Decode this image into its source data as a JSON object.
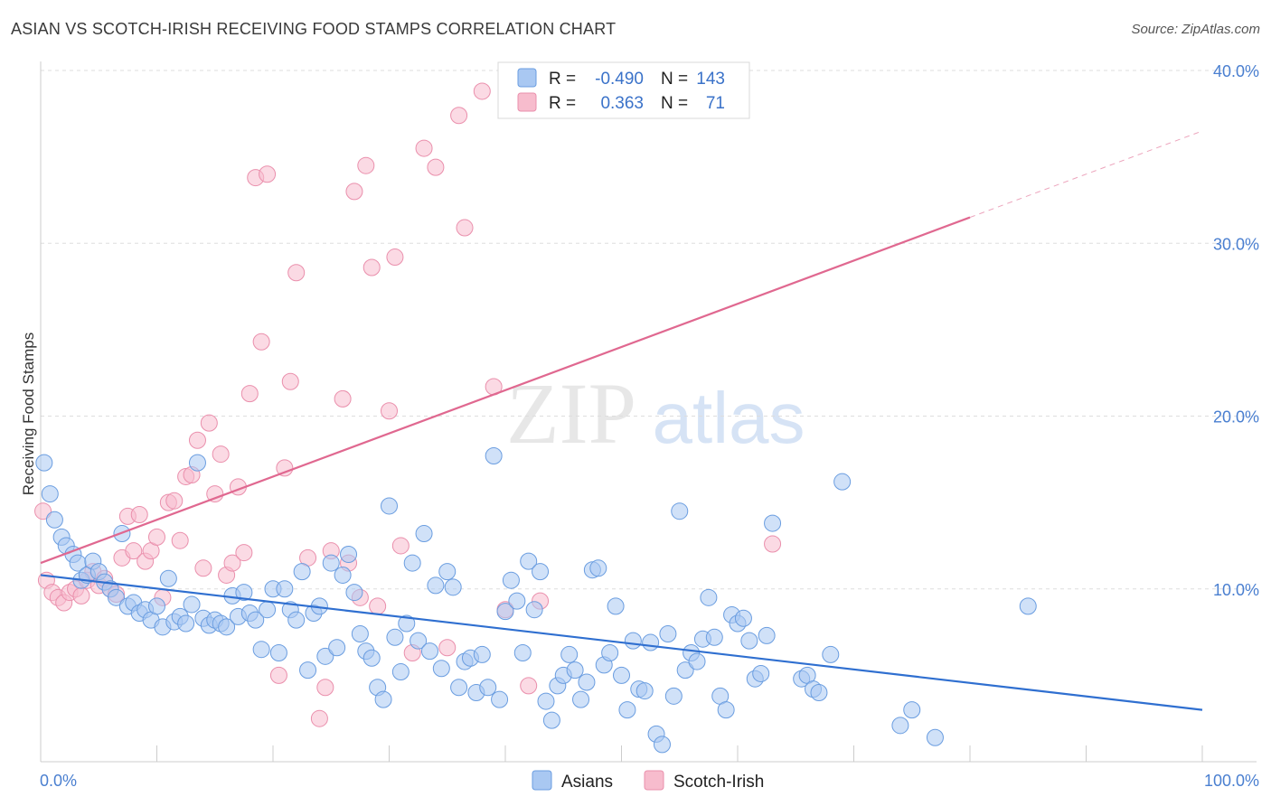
{
  "title": "ASIAN VS SCOTCH-IRISH RECEIVING FOOD STAMPS CORRELATION CHART",
  "source": "Source: ZipAtlas.com",
  "watermark": {
    "zip": "ZIP",
    "atlas": "atlas"
  },
  "colors": {
    "asians_fill": "#a9c8f2",
    "asians_stroke": "#6a9de0",
    "asians_line": "#2f6fd0",
    "scotch_fill": "#f7bccd",
    "scotch_stroke": "#ea8fac",
    "scotch_line": "#e06890",
    "tick": "#4a7fd0",
    "grid": "#dddddd"
  },
  "legend": {
    "rows": [
      {
        "r_label": "R =",
        "r_value": "-0.490",
        "n_label": "N =",
        "n_value": "143"
      },
      {
        "r_label": "R =",
        "r_value": "0.363",
        "n_label": "N =",
        "n_value": "71"
      }
    ]
  },
  "chart_data": {
    "type": "scatter",
    "ylabel": "Receiving Food Stamps",
    "xlim": [
      0,
      100
    ],
    "ylim": [
      0,
      40
    ],
    "x_tick_labels": [
      "0.0%",
      "100.0%"
    ],
    "y_ticks": [
      10,
      20,
      30,
      40
    ],
    "y_tick_labels": [
      "10.0%",
      "20.0%",
      "30.0%",
      "40.0%"
    ],
    "grid": true,
    "legend_position": "top-center",
    "series": [
      {
        "name": "Asians",
        "trend": {
          "x0": 0,
          "y0": 10.8,
          "x1": 100,
          "y1": 3.0
        },
        "points": [
          [
            0.3,
            17.3
          ],
          [
            0.8,
            15.5
          ],
          [
            1.2,
            14.0
          ],
          [
            1.8,
            13.0
          ],
          [
            2.2,
            12.5
          ],
          [
            2.8,
            12.0
          ],
          [
            3.2,
            11.5
          ],
          [
            3.5,
            10.5
          ],
          [
            4.0,
            10.8
          ],
          [
            4.5,
            11.6
          ],
          [
            5.0,
            11.0
          ],
          [
            5.5,
            10.4
          ],
          [
            6.0,
            10.0
          ],
          [
            6.5,
            9.5
          ],
          [
            7.0,
            13.2
          ],
          [
            7.5,
            9.0
          ],
          [
            8.0,
            9.2
          ],
          [
            8.5,
            8.6
          ],
          [
            9.0,
            8.8
          ],
          [
            9.5,
            8.2
          ],
          [
            10.0,
            9.0
          ],
          [
            10.5,
            7.8
          ],
          [
            11.0,
            10.6
          ],
          [
            11.5,
            8.1
          ],
          [
            12.0,
            8.4
          ],
          [
            12.5,
            8.0
          ],
          [
            13.0,
            9.1
          ],
          [
            13.5,
            17.3
          ],
          [
            14.0,
            8.3
          ],
          [
            14.5,
            7.9
          ],
          [
            15.0,
            8.2
          ],
          [
            15.5,
            8.0
          ],
          [
            16.0,
            7.8
          ],
          [
            16.5,
            9.6
          ],
          [
            17.0,
            8.4
          ],
          [
            17.5,
            9.8
          ],
          [
            18.0,
            8.6
          ],
          [
            18.5,
            8.2
          ],
          [
            19.0,
            6.5
          ],
          [
            19.5,
            8.8
          ],
          [
            20.0,
            10.0
          ],
          [
            20.5,
            6.3
          ],
          [
            21.0,
            10.0
          ],
          [
            21.5,
            8.8
          ],
          [
            22.0,
            8.2
          ],
          [
            22.5,
            11.0
          ],
          [
            23.0,
            5.3
          ],
          [
            23.5,
            8.6
          ],
          [
            24.0,
            9.0
          ],
          [
            24.5,
            6.1
          ],
          [
            25.0,
            11.5
          ],
          [
            25.5,
            6.6
          ],
          [
            26.0,
            10.8
          ],
          [
            26.5,
            12.0
          ],
          [
            27.0,
            9.8
          ],
          [
            27.5,
            7.4
          ],
          [
            28.0,
            6.4
          ],
          [
            28.5,
            6.0
          ],
          [
            29.0,
            4.3
          ],
          [
            29.5,
            3.6
          ],
          [
            30.0,
            14.8
          ],
          [
            30.5,
            7.2
          ],
          [
            31.0,
            5.2
          ],
          [
            31.5,
            8.0
          ],
          [
            32.0,
            11.5
          ],
          [
            32.5,
            7.0
          ],
          [
            33.0,
            13.2
          ],
          [
            33.5,
            6.4
          ],
          [
            34.0,
            10.2
          ],
          [
            34.5,
            5.4
          ],
          [
            35.0,
            11.0
          ],
          [
            35.5,
            10.1
          ],
          [
            36.0,
            4.3
          ],
          [
            36.5,
            5.8
          ],
          [
            37.0,
            6.0
          ],
          [
            37.5,
            4.0
          ],
          [
            38.0,
            6.2
          ],
          [
            38.5,
            4.3
          ],
          [
            39.0,
            17.7
          ],
          [
            39.5,
            3.6
          ],
          [
            40.0,
            8.7
          ],
          [
            40.5,
            10.5
          ],
          [
            41.0,
            9.3
          ],
          [
            41.5,
            6.3
          ],
          [
            42.0,
            11.6
          ],
          [
            42.5,
            8.8
          ],
          [
            43.0,
            11.0
          ],
          [
            43.5,
            3.5
          ],
          [
            44.0,
            2.4
          ],
          [
            44.5,
            4.4
          ],
          [
            45.0,
            5.0
          ],
          [
            45.5,
            6.2
          ],
          [
            46.0,
            5.3
          ],
          [
            46.5,
            3.6
          ],
          [
            47.0,
            4.6
          ],
          [
            47.5,
            11.1
          ],
          [
            48.0,
            11.2
          ],
          [
            48.5,
            5.6
          ],
          [
            49.0,
            6.3
          ],
          [
            49.5,
            9.0
          ],
          [
            50.0,
            5.0
          ],
          [
            50.5,
            3.0
          ],
          [
            51.0,
            7.0
          ],
          [
            51.5,
            4.2
          ],
          [
            52.0,
            4.1
          ],
          [
            52.5,
            6.9
          ],
          [
            53.0,
            1.6
          ],
          [
            53.5,
            1.0
          ],
          [
            54.0,
            7.4
          ],
          [
            54.5,
            3.8
          ],
          [
            55.0,
            14.5
          ],
          [
            55.5,
            5.3
          ],
          [
            56.0,
            6.3
          ],
          [
            56.5,
            5.8
          ],
          [
            57.0,
            7.1
          ],
          [
            57.5,
            9.5
          ],
          [
            58.0,
            7.2
          ],
          [
            58.5,
            3.8
          ],
          [
            59.0,
            3.0
          ],
          [
            59.5,
            8.5
          ],
          [
            60.0,
            8.0
          ],
          [
            60.5,
            8.3
          ],
          [
            61.0,
            7.0
          ],
          [
            61.5,
            4.8
          ],
          [
            62.0,
            5.1
          ],
          [
            62.5,
            7.3
          ],
          [
            63.0,
            13.8
          ],
          [
            65.5,
            4.8
          ],
          [
            66.0,
            5.0
          ],
          [
            66.5,
            4.2
          ],
          [
            67.0,
            4.0
          ],
          [
            68.0,
            6.2
          ],
          [
            69.0,
            16.2
          ],
          [
            74.0,
            2.1
          ],
          [
            75.0,
            3.0
          ],
          [
            77.0,
            1.4
          ],
          [
            85.0,
            9.0
          ]
        ]
      },
      {
        "name": "Scotch-Irish",
        "trend": {
          "x0": 0,
          "y0": 11.5,
          "x1": 80,
          "y1": 31.5,
          "x_dash_end": 100,
          "y_dash_end": 36.5
        },
        "points": [
          [
            0.2,
            14.5
          ],
          [
            0.5,
            10.5
          ],
          [
            1.0,
            9.8
          ],
          [
            1.5,
            9.5
          ],
          [
            2.0,
            9.2
          ],
          [
            2.5,
            9.8
          ],
          [
            3.0,
            10.0
          ],
          [
            3.5,
            9.6
          ],
          [
            4.0,
            10.5
          ],
          [
            4.5,
            11.0
          ],
          [
            5.0,
            10.2
          ],
          [
            5.5,
            10.6
          ],
          [
            6.0,
            10.0
          ],
          [
            6.5,
            9.7
          ],
          [
            7.0,
            11.8
          ],
          [
            7.5,
            14.2
          ],
          [
            8.0,
            12.2
          ],
          [
            8.5,
            14.3
          ],
          [
            9.0,
            11.6
          ],
          [
            9.5,
            12.2
          ],
          [
            10.0,
            13.0
          ],
          [
            10.5,
            9.5
          ],
          [
            11.0,
            15.0
          ],
          [
            11.5,
            15.1
          ],
          [
            12.0,
            12.8
          ],
          [
            12.5,
            16.5
          ],
          [
            13.0,
            16.6
          ],
          [
            13.5,
            18.6
          ],
          [
            14.0,
            11.2
          ],
          [
            14.5,
            19.6
          ],
          [
            15.0,
            15.5
          ],
          [
            15.5,
            17.8
          ],
          [
            16.0,
            10.8
          ],
          [
            16.5,
            11.5
          ],
          [
            17.0,
            15.9
          ],
          [
            17.5,
            12.1
          ],
          [
            18.0,
            21.3
          ],
          [
            18.5,
            33.8
          ],
          [
            19.0,
            24.3
          ],
          [
            19.5,
            34.0
          ],
          [
            20.5,
            5.0
          ],
          [
            21.0,
            17.0
          ],
          [
            21.5,
            22.0
          ],
          [
            22.0,
            28.3
          ],
          [
            23.0,
            11.8
          ],
          [
            24.0,
            2.5
          ],
          [
            24.5,
            4.3
          ],
          [
            25.0,
            12.2
          ],
          [
            26.0,
            21.0
          ],
          [
            26.5,
            11.5
          ],
          [
            27.0,
            33.0
          ],
          [
            27.5,
            9.5
          ],
          [
            28.0,
            34.5
          ],
          [
            28.5,
            28.6
          ],
          [
            29.0,
            9.0
          ],
          [
            30.0,
            20.3
          ],
          [
            30.5,
            29.2
          ],
          [
            31.0,
            12.5
          ],
          [
            32.0,
            6.3
          ],
          [
            33.0,
            35.5
          ],
          [
            34.0,
            34.4
          ],
          [
            35.0,
            6.6
          ],
          [
            36.0,
            37.4
          ],
          [
            36.5,
            30.9
          ],
          [
            38.0,
            38.8
          ],
          [
            39.0,
            21.7
          ],
          [
            40.0,
            8.8
          ],
          [
            42.0,
            4.4
          ],
          [
            43.0,
            9.3
          ],
          [
            47.0,
            38.6
          ],
          [
            63.0,
            12.6
          ]
        ]
      }
    ]
  }
}
